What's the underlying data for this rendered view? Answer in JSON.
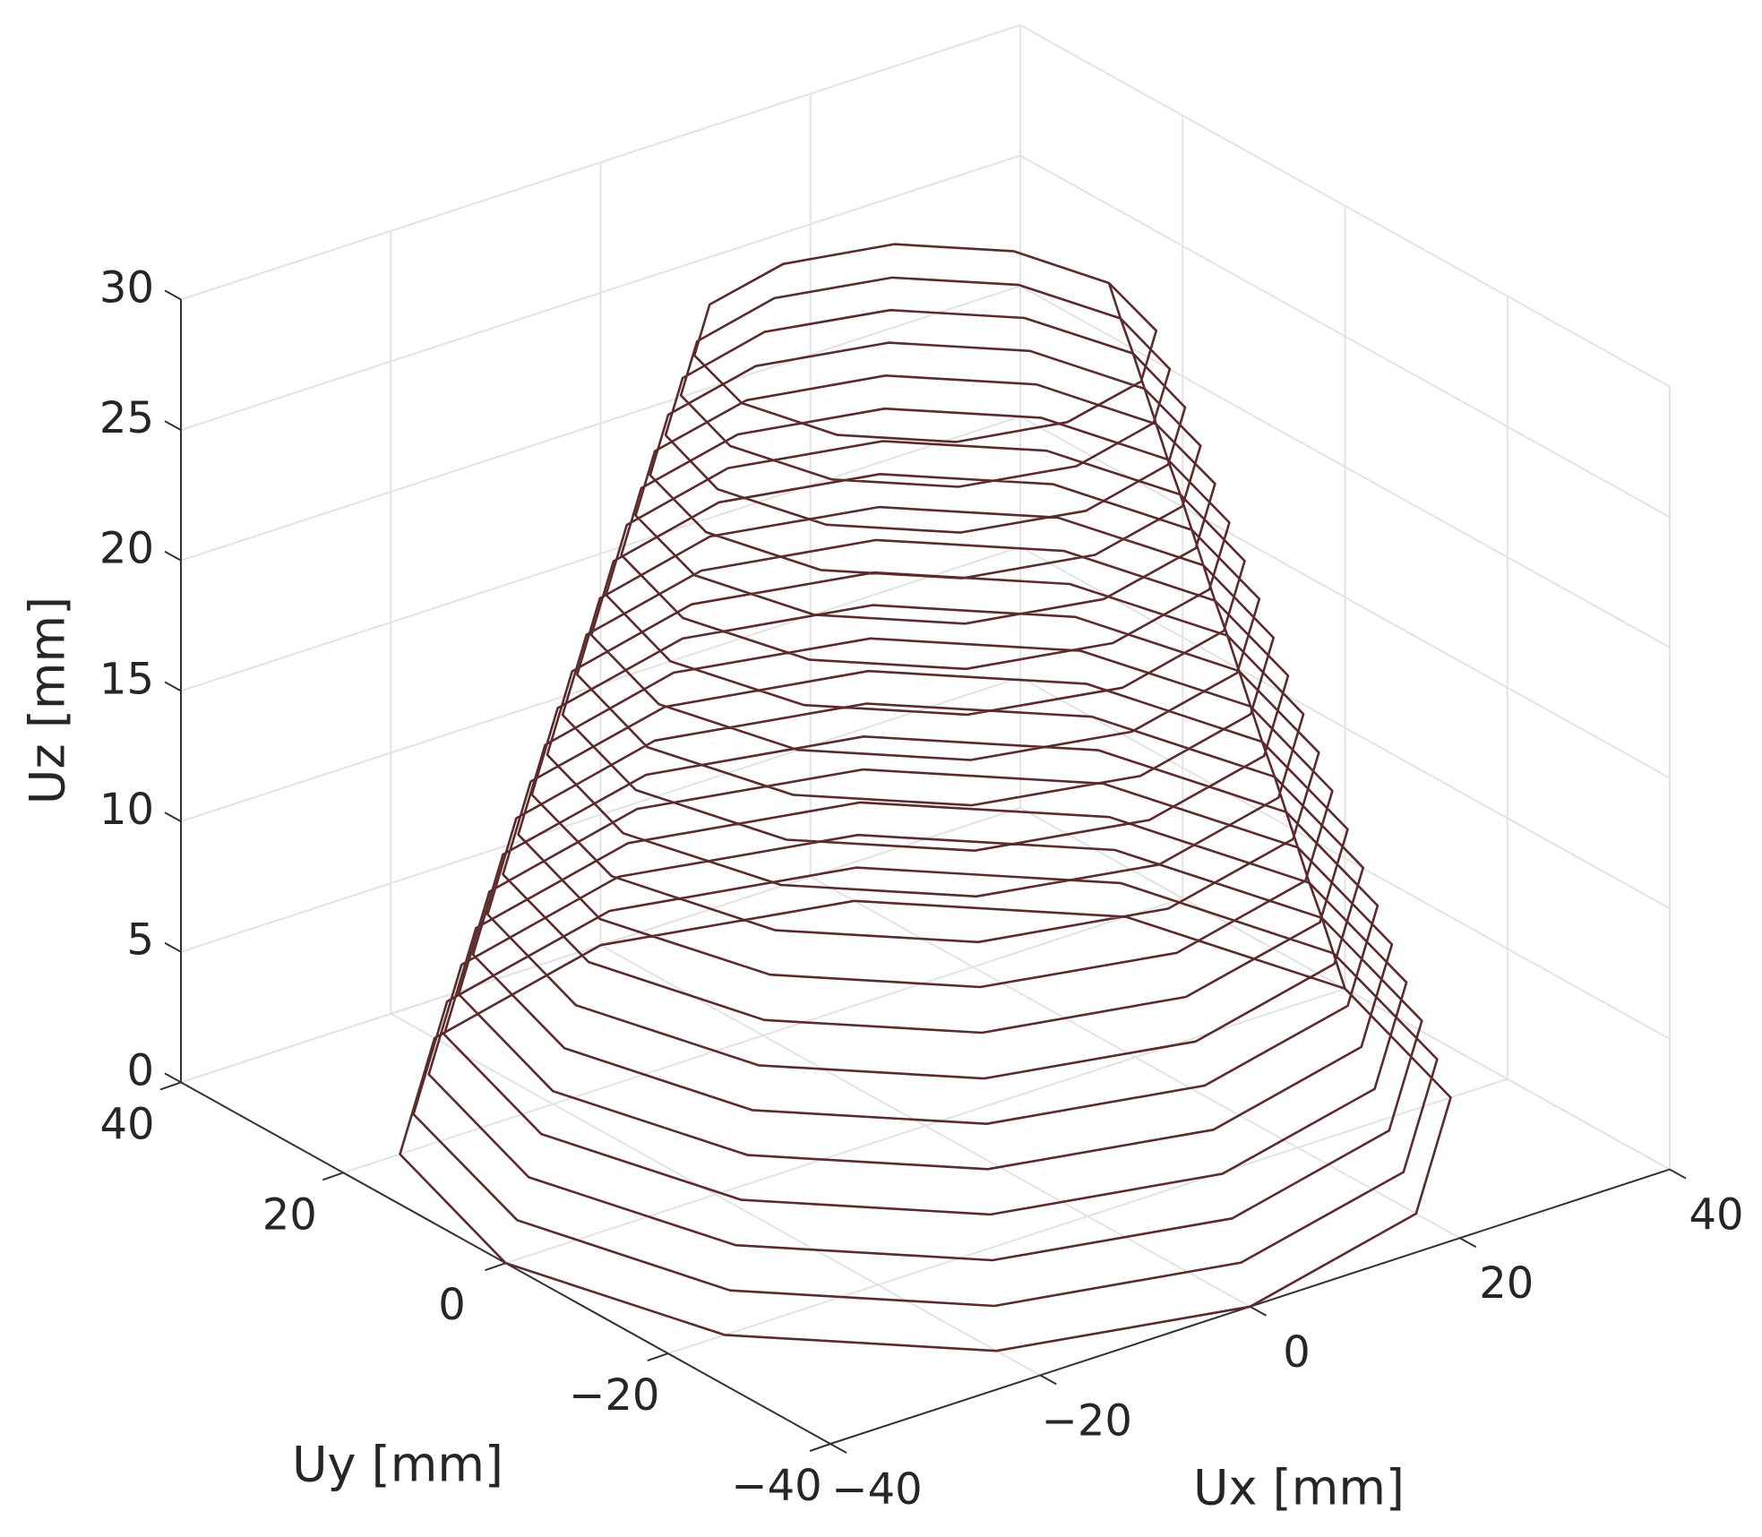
{
  "chart_data": {
    "type": "line3d",
    "xlabel": "Ux [mm]",
    "ylabel": "Uy [mm]",
    "zlabel": "Uz [mm]",
    "xlim": [
      -40,
      40
    ],
    "ylim": [
      -40,
      40
    ],
    "zlim": [
      0,
      30
    ],
    "xticks": [
      {
        "value": -40,
        "label": "−40"
      },
      {
        "value": -20,
        "label": "−20"
      },
      0,
      20,
      40
    ],
    "yticks": [
      {
        "value": -40,
        "label": "−40"
      },
      {
        "value": -20,
        "label": "−20"
      },
      0,
      20,
      40
    ],
    "zticks": [
      0,
      5,
      10,
      15,
      20,
      25,
      30
    ],
    "grid": true,
    "series": [
      {
        "color": "#5b2b2b",
        "x": [
          40,
          34.6,
          20,
          0,
          -20,
          -34.6,
          -40,
          -34.6,
          -20,
          0,
          20,
          34.6,
          40,
          38.9,
          33.7,
          19.5,
          0,
          -19.5,
          -33.7,
          -38.9,
          -33.7,
          -19.5,
          0,
          19.5,
          33.7,
          38.9,
          37.8,
          32.7,
          18.9,
          0,
          -18.9,
          -32.7,
          -37.8,
          -32.7,
          -18.9,
          0,
          18.9,
          32.7,
          37.8,
          36.6,
          31.7,
          18.3,
          0,
          -18.3,
          -31.7,
          -36.6,
          -31.7,
          -18.3,
          0,
          18.3,
          31.7,
          36.6,
          35.5,
          30.7,
          17.8,
          0,
          -17.8,
          -30.7,
          -35.5,
          -30.7,
          -17.8,
          0,
          17.8,
          30.7,
          35.5,
          34.4,
          29.8,
          17.2,
          0,
          -17.2,
          -29.8,
          -34.4,
          -29.8,
          -17.2,
          0,
          17.2,
          29.8,
          34.4,
          33.3,
          28.8,
          16.7,
          0,
          -16.7,
          -28.8,
          -33.3,
          -28.8,
          -16.7,
          0,
          16.7,
          28.8,
          33.3,
          32.1,
          27.8,
          16.1,
          0,
          -16.1,
          -27.8,
          -32.1,
          -27.8,
          -16.1,
          0,
          16.1,
          27.8,
          32.1,
          31,
          26.8,
          15.5,
          0,
          -15.5,
          -26.8,
          -31,
          -26.8,
          -15.5,
          0,
          15.5,
          26.8,
          31,
          29.9,
          25.9,
          15,
          0,
          -15,
          -25.9,
          -29.9,
          -25.9,
          -15,
          0,
          15,
          25.9,
          29.9,
          28.8,
          24.9,
          14.4,
          0,
          -14.4,
          -24.9,
          -28.8,
          -24.9,
          -14.4,
          0,
          14.4,
          24.9,
          28.8,
          27.6,
          23.9,
          13.8,
          0,
          -13.8,
          -23.9,
          -27.6,
          -23.9,
          -13.8,
          0,
          13.8,
          23.9,
          27.6,
          26.5,
          22.9,
          13.3,
          0,
          -13.3,
          -22.9,
          -26.5,
          -22.9,
          -13.3,
          0,
          13.3,
          22.9,
          26.5,
          25.4,
          22,
          12.7,
          0,
          -12.7,
          -22,
          -25.4,
          -22,
          -12.7,
          0,
          12.7,
          22,
          25.4,
          24.3,
          21,
          12.2,
          0,
          -12.2,
          -21,
          -24.3,
          -21,
          -12.2,
          0,
          12.2,
          21,
          24.3,
          23.1,
          20,
          11.6,
          0,
          -11.6,
          -20,
          -23.1,
          -20,
          -11.6,
          0,
          11.6,
          20,
          23.1,
          22,
          19.1,
          11,
          0,
          -11,
          -19.1,
          -22,
          -19.1,
          -11,
          0,
          11,
          19.1,
          22,
          20.9,
          18.1,
          10.5,
          0,
          -10.5,
          -18.1,
          -20.9,
          -18.1,
          -10.5,
          0,
          10.5,
          18.1,
          20.9,
          19.8,
          17.1,
          9.9,
          0,
          -9.9,
          -17.1,
          -19.8,
          -17.1,
          -9.9,
          0,
          9.9,
          17.1,
          19.8,
          18.6,
          16.1,
          9.3,
          0,
          -9.3,
          -16.1,
          -18.6,
          -16.1,
          -9.3,
          0,
          9.3,
          16.1,
          18.6,
          17.5,
          15.2,
          8.8,
          0,
          -8.8,
          -15.2,
          -17.5,
          -15.2,
          -8.8,
          0,
          8.8,
          15.2,
          17.5
        ],
        "y": [
          0,
          20,
          34.6,
          40,
          34.6,
          20,
          0,
          -20,
          -34.6,
          -40,
          -34.6,
          -20,
          0,
          0,
          19.5,
          33.7,
          38.9,
          33.7,
          19.5,
          0,
          -19.5,
          -33.7,
          -38.9,
          -33.7,
          -19.5,
          0,
          0,
          18.9,
          32.7,
          37.8,
          32.7,
          18.9,
          0,
          -18.9,
          -32.7,
          -37.8,
          -32.7,
          -18.9,
          0,
          0,
          18.3,
          31.7,
          36.6,
          31.7,
          18.3,
          0,
          -18.3,
          -31.7,
          -36.6,
          -31.7,
          -18.3,
          0,
          0,
          17.8,
          30.7,
          35.5,
          30.7,
          17.8,
          0,
          -17.8,
          -30.7,
          -35.5,
          -30.7,
          -17.8,
          0,
          0,
          17.2,
          29.8,
          34.4,
          29.8,
          17.2,
          0,
          -17.2,
          -29.8,
          -34.4,
          -29.8,
          -17.2,
          0,
          0,
          16.7,
          28.8,
          33.3,
          28.8,
          16.7,
          0,
          -16.7,
          -28.8,
          -33.3,
          -28.8,
          -16.7,
          0,
          0,
          16.1,
          27.8,
          32.1,
          27.8,
          16.1,
          0,
          -16.1,
          -27.8,
          -32.1,
          -27.8,
          -16.1,
          0,
          0,
          15.5,
          26.8,
          31,
          26.8,
          15.5,
          0,
          -15.5,
          -26.8,
          -31,
          -26.8,
          -15.5,
          0,
          0,
          15,
          25.9,
          29.9,
          25.9,
          15,
          0,
          -15,
          -25.9,
          -29.9,
          -25.9,
          -15,
          0,
          0,
          14.4,
          24.9,
          28.8,
          24.9,
          14.4,
          0,
          -14.4,
          -24.9,
          -28.8,
          -24.9,
          -14.4,
          0,
          0,
          13.8,
          23.9,
          27.6,
          23.9,
          13.8,
          0,
          -13.8,
          -23.9,
          -27.6,
          -23.9,
          -13.8,
          0,
          0,
          13.3,
          22.9,
          26.5,
          22.9,
          13.3,
          0,
          -13.3,
          -22.9,
          -26.5,
          -22.9,
          -13.3,
          0,
          0,
          12.7,
          22,
          25.4,
          22,
          12.7,
          0,
          -12.7,
          -22,
          -25.4,
          -22,
          -12.7,
          0,
          0,
          12.2,
          21,
          24.3,
          21,
          12.2,
          0,
          -12.2,
          -21,
          -24.3,
          -21,
          -12.2,
          0,
          0,
          11.6,
          20,
          23.1,
          20,
          11.6,
          0,
          -11.6,
          -20,
          -23.1,
          -20,
          -11.6,
          0,
          0,
          11,
          19.1,
          22,
          19.1,
          11,
          0,
          -11,
          -19.1,
          -22,
          -19.1,
          -11,
          0,
          0,
          10.5,
          18.1,
          20.9,
          18.1,
          10.5,
          0,
          -10.5,
          -18.1,
          -20.9,
          -18.1,
          -10.5,
          0,
          0,
          9.9,
          17.1,
          19.8,
          17.1,
          9.9,
          0,
          -9.9,
          -17.1,
          -19.8,
          -17.1,
          -9.9,
          0,
          0,
          9.3,
          16.1,
          18.6,
          16.1,
          9.3,
          0,
          -9.3,
          -16.1,
          -18.6,
          -16.1,
          -9.3,
          0,
          0,
          8.8,
          15.2,
          17.5,
          15.2,
          8.8,
          0,
          -8.8,
          -15.2,
          -17.5,
          -15.2,
          -8.8,
          0
        ],
        "z": [
          0,
          0,
          0,
          0,
          0,
          0,
          0,
          0,
          0,
          0,
          0,
          0,
          0,
          1.5,
          1.5,
          1.5,
          1.5,
          1.5,
          1.5,
          1.5,
          1.5,
          1.5,
          1.5,
          1.5,
          1.5,
          1.5,
          3,
          3,
          3,
          3,
          3,
          3,
          3,
          3,
          3,
          3,
          3,
          3,
          3,
          4.5,
          4.5,
          4.5,
          4.5,
          4.5,
          4.5,
          4.5,
          4.5,
          4.5,
          4.5,
          4.5,
          4.5,
          4.5,
          6,
          6,
          6,
          6,
          6,
          6,
          6,
          6,
          6,
          6,
          6,
          6,
          6,
          7.5,
          7.5,
          7.5,
          7.5,
          7.5,
          7.5,
          7.5,
          7.5,
          7.5,
          7.5,
          7.5,
          7.5,
          7.5,
          9,
          9,
          9,
          9,
          9,
          9,
          9,
          9,
          9,
          9,
          9,
          9,
          9,
          10.5,
          10.5,
          10.5,
          10.5,
          10.5,
          10.5,
          10.5,
          10.5,
          10.5,
          10.5,
          10.5,
          10.5,
          10.5,
          12,
          12,
          12,
          12,
          12,
          12,
          12,
          12,
          12,
          12,
          12,
          12,
          12,
          13.5,
          13.5,
          13.5,
          13.5,
          13.5,
          13.5,
          13.5,
          13.5,
          13.5,
          13.5,
          13.5,
          13.5,
          13.5,
          15,
          15,
          15,
          15,
          15,
          15,
          15,
          15,
          15,
          15,
          15,
          15,
          15,
          16.5,
          16.5,
          16.5,
          16.5,
          16.5,
          16.5,
          16.5,
          16.5,
          16.5,
          16.5,
          16.5,
          16.5,
          16.5,
          18,
          18,
          18,
          18,
          18,
          18,
          18,
          18,
          18,
          18,
          18,
          18,
          18,
          19.5,
          19.5,
          19.5,
          19.5,
          19.5,
          19.5,
          19.5,
          19.5,
          19.5,
          19.5,
          19.5,
          19.5,
          19.5,
          21,
          21,
          21,
          21,
          21,
          21,
          21,
          21,
          21,
          21,
          21,
          21,
          21,
          22.5,
          22.5,
          22.5,
          22.5,
          22.5,
          22.5,
          22.5,
          22.5,
          22.5,
          22.5,
          22.5,
          22.5,
          22.5,
          24,
          24,
          24,
          24,
          24,
          24,
          24,
          24,
          24,
          24,
          24,
          24,
          24,
          25.5,
          25.5,
          25.5,
          25.5,
          25.5,
          25.5,
          25.5,
          25.5,
          25.5,
          25.5,
          25.5,
          25.5,
          25.5,
          27,
          27,
          27,
          27,
          27,
          27,
          27,
          27,
          27,
          27,
          27,
          27,
          27,
          28.5,
          28.5,
          28.5,
          28.5,
          28.5,
          28.5,
          28.5,
          28.5,
          28.5,
          28.5,
          28.5,
          28.5,
          28.5,
          30,
          30,
          30,
          30,
          30,
          30,
          30,
          30,
          30,
          30,
          30,
          30,
          30
        ]
      }
    ]
  }
}
